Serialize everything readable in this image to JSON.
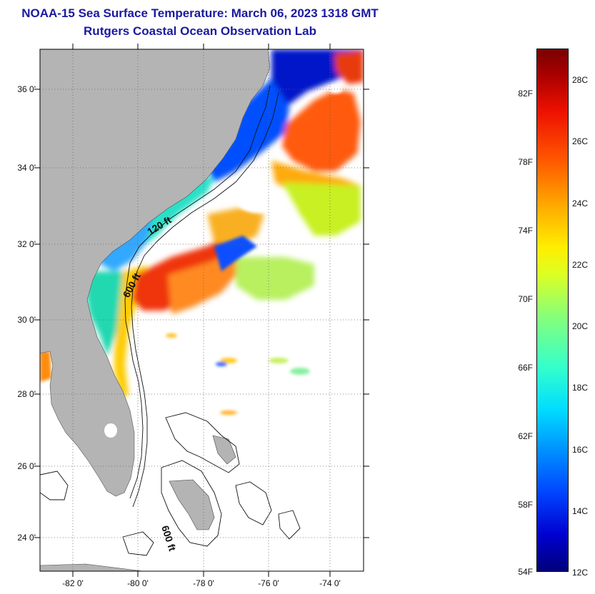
{
  "header": {
    "title": "NOAA-15 Sea Surface Temperature:  March 06, 2023 1318 GMT",
    "subtitle": "Rutgers Coastal Ocean Observation Lab"
  },
  "map": {
    "lon_ticks": [
      "-82 0'",
      "-80 0'",
      "-78 0'",
      "-76 0'",
      "-74 0'"
    ],
    "lat_ticks": [
      "36 0'",
      "34 0'",
      "32 0'",
      "30 0'",
      "28 0'",
      "26 0'",
      "24 0'"
    ],
    "contour_labels": [
      "120 ft",
      "600 ft",
      "600 ft"
    ],
    "land_color": "#b4b4b4"
  },
  "colorbar": {
    "fahrenheit": [
      "82F",
      "78F",
      "74F",
      "70F",
      "66F",
      "62F",
      "58F",
      "54F"
    ],
    "celsius": [
      "28C",
      "26C",
      "24C",
      "22C",
      "20C",
      "18C",
      "16C",
      "14C",
      "12C"
    ]
  }
}
